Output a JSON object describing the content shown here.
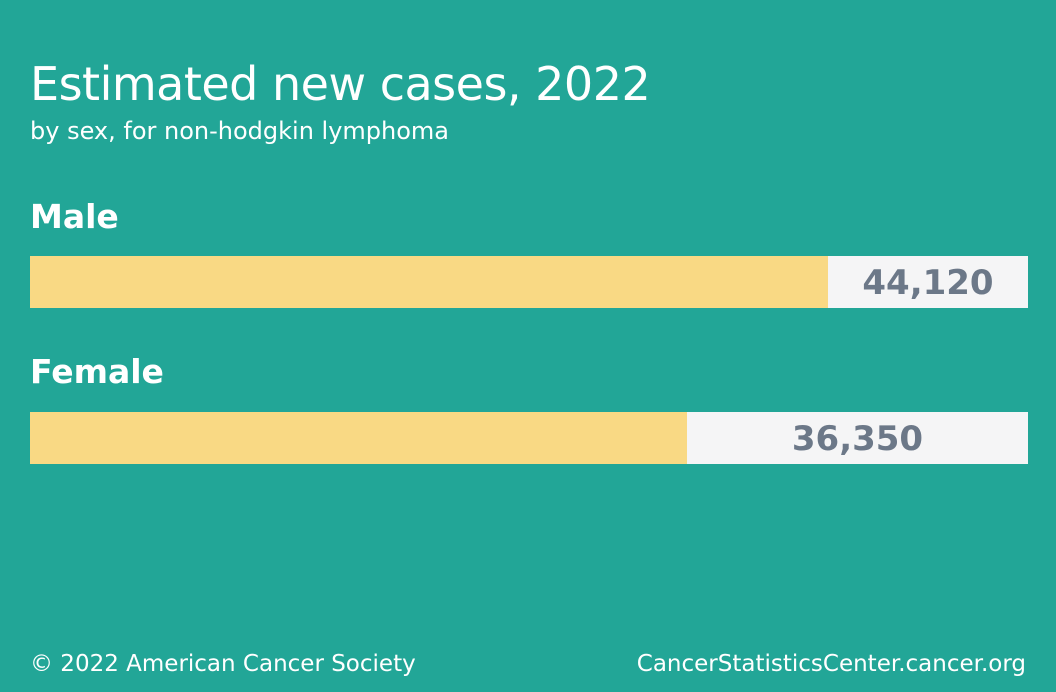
{
  "colors": {
    "background": "#22a697",
    "bar": "#f9d984",
    "track": "#f5f5f6",
    "value_text": "#6c7888",
    "text": "#ffffff"
  },
  "chart_data": {
    "type": "bar",
    "orientation": "horizontal",
    "title": "Estimated new cases, 2022",
    "subtitle": "by sex, for non-hodgkin lymphoma",
    "categories": [
      "Male",
      "Female"
    ],
    "values": [
      44120,
      36350
    ],
    "value_labels": [
      "44,120",
      "36,350"
    ],
    "xlim": [
      0,
      55200
    ],
    "grid": false,
    "legend": "none"
  },
  "footer": {
    "copyright": "© 2022 American Cancer Society",
    "source": "CancerStatisticsCenter.cancer.org"
  }
}
